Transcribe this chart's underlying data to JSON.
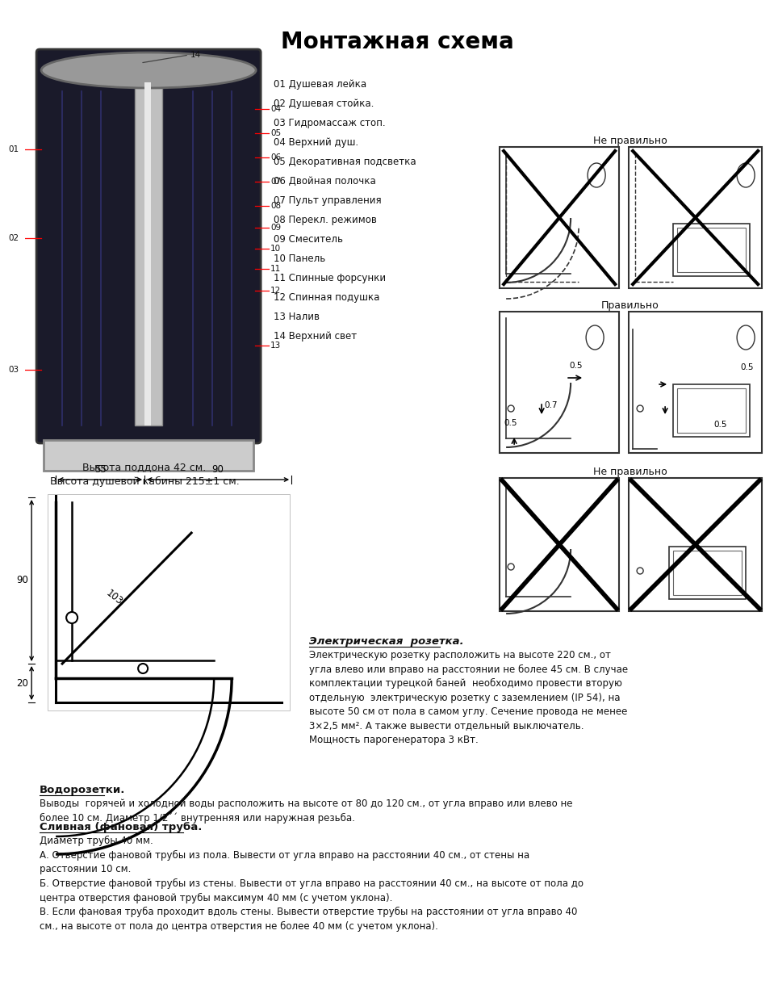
{
  "title": "Монтажная схема",
  "bg_color": "#ffffff",
  "title_fontsize": 20,
  "parts_labels": [
    "01 Душевая лейка",
    "02 Душевая стойка.",
    "03 Гидромассаж стоп.",
    "04 Верхний душ.",
    "05 Декоративная подсветка",
    "06 Двойная полочка",
    "07 Пульт управления",
    "08 Перекл. режимов",
    "09 Смеситель",
    "10 Панель",
    "11 Спинные форсунки",
    "12 Спинная подушка",
    "13 Налив",
    "14 Верхний свет"
  ],
  "section_ne_pravilno1": "Не правильно",
  "section_pravilno": "Правильно",
  "section_ne_pravilno2": "Не правильно",
  "dim_text1": "Высота поддона 42 см.",
  "dim_text2": "Высота душевой кабины 215±1 см.",
  "dim_55": "55",
  "dim_90_h": "90",
  "dim_20": "20",
  "dim_90_v": "90",
  "dim_103": "103",
  "el_title": "Электрическая  розетка.",
  "el_text": "Электрическую розетку расположить на высоте 220 см., от\nугла влево или вправо на расстоянии не более 45 см. В случае\nкомплектации турецкой баней  необходимо провести вторую\nотдельную  электрическую розетку с заземлением (IP 54), на\nвысоте 50 см от пола в самом углу. Сечение провода не менее\n3×2,5 мм². А также вывести отдельный выключатель.\nМощность парогенератора 3 кВт.",
  "water_title": "Водорозетки.",
  "water_text": "Выводы  горячей и холодной воды расположить на высоте от 80 до 120 см., от угла вправо или влево не\nболее 10 см. Диаметр 1/2´´ внутренняя или наружная резьба.",
  "drain_title": "Сливная (фановая) труба.",
  "drain_text": "Диаметр трубы 40 мм.\nА. Отверстие фановой трубы из пола. Вывести от угла вправо на расстоянии 40 см., от стены на\nрасстоянии 10 см.\nБ. Отверстие фановой трубы из стены. Вывести от угла вправо на расстоянии 40 см., на высоте от пола до\nцентра отверстия фановой трубы максимум 40 мм (с учетом уклона).\nВ. Если фановая труба проходит вдоль стены. Вывести отверстие трубы на расстоянии от угла вправо 40\nсм., на высоте от пола до центра отверстия не более 40 мм (с учетом уклона)."
}
